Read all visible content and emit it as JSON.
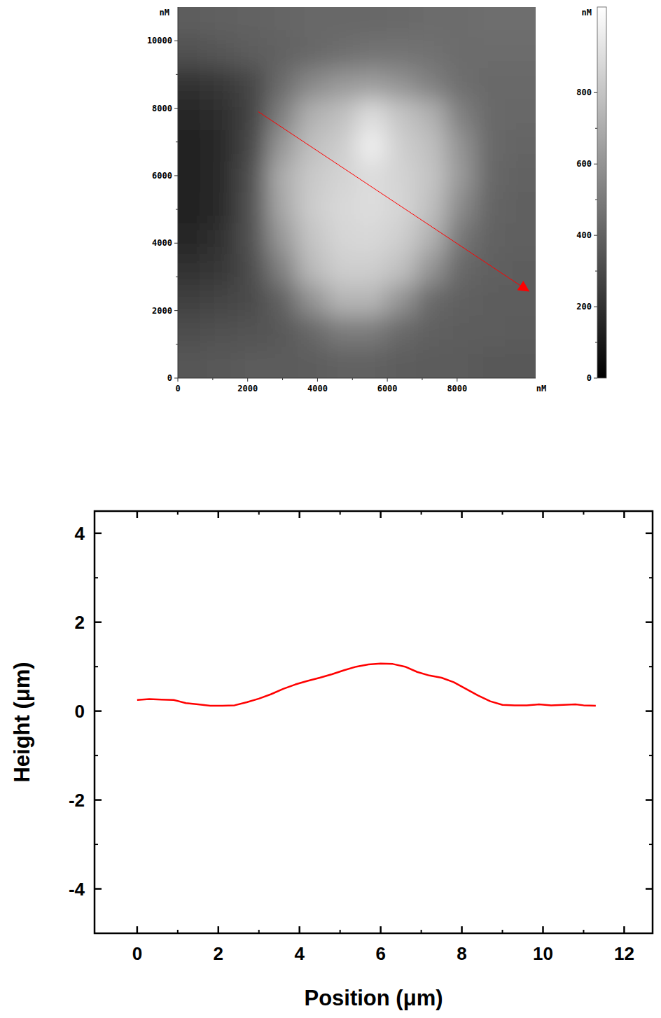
{
  "chart_data": [
    {
      "type": "heatmap",
      "x_label": "nM",
      "y_label": "nM",
      "xlim": [
        0,
        10250
      ],
      "ylim": [
        0,
        11000
      ],
      "xticks": [
        0,
        2000,
        4000,
        6000,
        8000
      ],
      "yticks": [
        0,
        2000,
        4000,
        6000,
        8000,
        10000
      ],
      "cells": [
        [
          380,
          390,
          400,
          410,
          420,
          420,
          420,
          430,
          440,
          440,
          450,
          450
        ],
        [
          330,
          350,
          380,
          400,
          420,
          450,
          470,
          470,
          460,
          440,
          440,
          440
        ],
        [
          200,
          230,
          290,
          440,
          560,
          620,
          640,
          600,
          520,
          450,
          430,
          430
        ],
        [
          150,
          190,
          280,
          520,
          720,
          780,
          900,
          800,
          720,
          520,
          430,
          420
        ],
        [
          130,
          170,
          300,
          620,
          780,
          830,
          980,
          840,
          780,
          600,
          430,
          410
        ],
        [
          130,
          170,
          330,
          700,
          820,
          860,
          900,
          860,
          800,
          620,
          420,
          400
        ],
        [
          140,
          180,
          340,
          680,
          830,
          880,
          900,
          870,
          780,
          560,
          410,
          390
        ],
        [
          160,
          200,
          340,
          620,
          800,
          870,
          880,
          840,
          720,
          480,
          400,
          390
        ],
        [
          200,
          230,
          320,
          520,
          760,
          840,
          840,
          780,
          600,
          420,
          390,
          380
        ],
        [
          260,
          280,
          310,
          400,
          600,
          740,
          740,
          600,
          430,
          390,
          380,
          380
        ],
        [
          320,
          330,
          340,
          360,
          420,
          500,
          500,
          430,
          390,
          380,
          380,
          370
        ],
        [
          350,
          360,
          370,
          370,
          380,
          400,
          400,
          380,
          370,
          370,
          360,
          360
        ]
      ],
      "color_range": [
        0,
        1040
      ],
      "color_ticks": [
        0,
        200,
        400,
        600,
        800
      ],
      "color_label": "nM",
      "profile_line": {
        "x": [
          2300,
          10020
        ],
        "y": [
          7900,
          2600
        ],
        "color": "#ff0000"
      }
    },
    {
      "type": "line",
      "x_label": "Position (μm)",
      "y_label": "Height (μm)",
      "xlim": [
        -1.05,
        12.7
      ],
      "ylim": [
        -5,
        4.5
      ],
      "xticks": [
        0,
        2,
        4,
        6,
        8,
        10,
        12
      ],
      "yticks": [
        -4,
        -2,
        0,
        2,
        4
      ],
      "x": [
        0,
        0.3,
        0.6,
        0.9,
        1.2,
        1.5,
        1.8,
        2.1,
        2.4,
        2.7,
        3.0,
        3.3,
        3.6,
        3.9,
        4.2,
        4.5,
        4.8,
        5.1,
        5.4,
        5.7,
        6.0,
        6.3,
        6.6,
        6.9,
        7.2,
        7.5,
        7.8,
        8.1,
        8.4,
        8.7,
        9.0,
        9.3,
        9.6,
        9.9,
        10.2,
        10.5,
        10.8,
        11.0,
        11.3
      ],
      "series": [
        {
          "color": "#ff0000",
          "values": [
            0.25,
            0.27,
            0.26,
            0.25,
            0.18,
            0.15,
            0.12,
            0.12,
            0.13,
            0.2,
            0.28,
            0.38,
            0.5,
            0.6,
            0.68,
            0.75,
            0.83,
            0.92,
            1.0,
            1.05,
            1.07,
            1.06,
            1.0,
            0.88,
            0.8,
            0.75,
            0.65,
            0.5,
            0.35,
            0.22,
            0.14,
            0.13,
            0.13,
            0.15,
            0.13,
            0.14,
            0.15,
            0.13,
            0.12
          ]
        }
      ]
    }
  ]
}
